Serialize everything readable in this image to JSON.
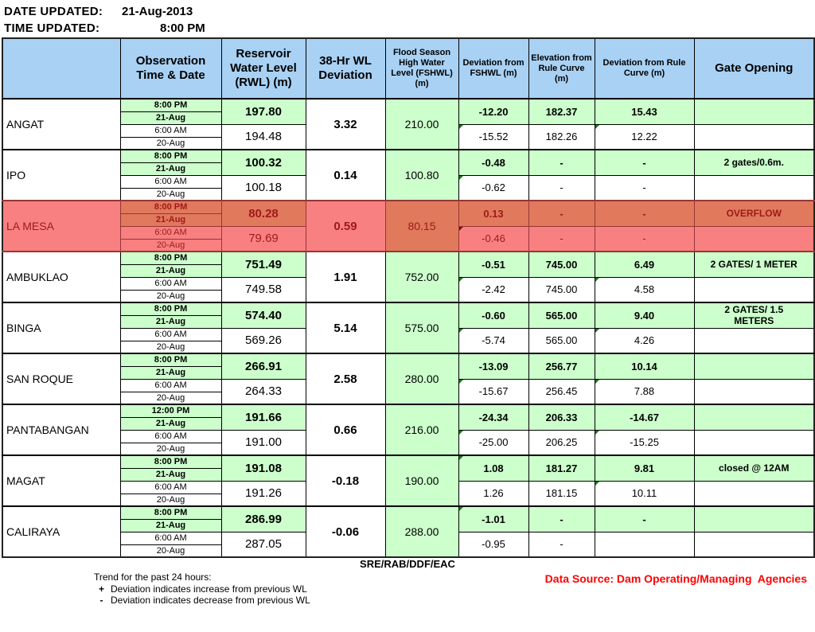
{
  "meta": {
    "date_label": "DATE UPDATED:",
    "date_value": "21-Aug-2013",
    "time_label": "TIME UPDATED:",
    "time_value": "8:00 PM"
  },
  "table": {
    "headers": {
      "dam": "",
      "observation": "Observation Time & Date",
      "rwl": "Reservoir Water Level (RWL) (m)",
      "dev38": "38-Hr WL Deviation",
      "fshwl": "Flood Season High Water Level (FSHWL) (m)",
      "dev_fshwl": "Deviation from FSHWL (m)",
      "elev_rule": "Elevation from Rule Curve (m)",
      "dev_rule": "Deviation from Rule Curve (m)",
      "gate": "Gate Opening"
    },
    "rows": [
      {
        "dam": "ANGAT",
        "highlight": false,
        "time": [
          "8:00 PM",
          "21-Aug",
          "6:00 AM",
          "20-Aug"
        ],
        "rwl": [
          "197.80",
          "194.48"
        ],
        "dev38": "3.32",
        "fshwl": "210.00",
        "dev_fshwl": [
          "-12.20",
          "-15.52"
        ],
        "elev_rule": [
          "182.37",
          "182.26"
        ],
        "dev_rule": [
          "15.43",
          "12.22"
        ],
        "gate": [
          "",
          ""
        ],
        "markers": {
          "devf_top": false,
          "devf_bot": true,
          "devr_bot": true
        }
      },
      {
        "dam": "IPO",
        "highlight": false,
        "time": [
          "8:00 PM",
          "21-Aug",
          "6:00 AM",
          "20-Aug"
        ],
        "rwl": [
          "100.32",
          "100.18"
        ],
        "dev38": "0.14",
        "fshwl": "100.80",
        "dev_fshwl": [
          "-0.48",
          "-0.62"
        ],
        "elev_rule": [
          "-",
          "-"
        ],
        "dev_rule": [
          "-",
          "-"
        ],
        "gate": [
          "2 gates/0.6m.",
          ""
        ],
        "markers": {
          "devf_top": false,
          "devf_bot": true,
          "devr_bot": false
        }
      },
      {
        "dam": "LA MESA",
        "highlight": true,
        "time": [
          "8:00 PM",
          "21-Aug",
          "6:00 AM",
          "20-Aug"
        ],
        "rwl": [
          "80.28",
          "79.69"
        ],
        "dev38": "0.59",
        "fshwl": "80.15",
        "dev_fshwl": [
          "0.13",
          "-0.46"
        ],
        "elev_rule": [
          "-",
          "-"
        ],
        "dev_rule": [
          "-",
          "-"
        ],
        "gate": [
          "OVERFLOW",
          ""
        ],
        "markers": {
          "devf_top": false,
          "devf_bot": true,
          "devr_bot": false
        }
      },
      {
        "dam": "AMBUKLAO",
        "highlight": false,
        "time": [
          "8:00 PM",
          "21-Aug",
          "6:00 AM",
          "20-Aug"
        ],
        "rwl": [
          "751.49",
          "749.58"
        ],
        "dev38": "1.91",
        "fshwl": "752.00",
        "dev_fshwl": [
          "-0.51",
          "-2.42"
        ],
        "elev_rule": [
          "745.00",
          "745.00"
        ],
        "dev_rule": [
          "6.49",
          "4.58"
        ],
        "gate": [
          "2 GATES/ 1 METER",
          ""
        ],
        "markers": {
          "devf_top": false,
          "devf_bot": true,
          "devr_bot": true
        }
      },
      {
        "dam": "BINGA",
        "highlight": false,
        "time": [
          "8:00 PM",
          "21-Aug",
          "6:00 AM",
          "20-Aug"
        ],
        "rwl": [
          "574.40",
          "569.26"
        ],
        "dev38": "5.14",
        "fshwl": "575.00",
        "dev_fshwl": [
          "-0.60",
          "-5.74"
        ],
        "elev_rule": [
          "565.00",
          "565.00"
        ],
        "dev_rule": [
          "9.40",
          "4.26"
        ],
        "gate": [
          "2 GATES/ 1.5\nMETERS",
          ""
        ],
        "markers": {
          "devf_top": false,
          "devf_bot": true,
          "devr_bot": true
        }
      },
      {
        "dam": "SAN ROQUE",
        "highlight": false,
        "time": [
          "8:00 PM",
          "21-Aug",
          "6:00 AM",
          "20-Aug"
        ],
        "rwl": [
          "266.91",
          "264.33"
        ],
        "dev38": "2.58",
        "fshwl": "280.00",
        "dev_fshwl": [
          "-13.09",
          "-15.67"
        ],
        "elev_rule": [
          "256.77",
          "256.45"
        ],
        "dev_rule": [
          "10.14",
          "7.88"
        ],
        "gate": [
          "",
          ""
        ],
        "markers": {
          "devf_top": false,
          "devf_bot": true,
          "devr_bot": true
        }
      },
      {
        "dam": "PANTABANGAN",
        "highlight": false,
        "time": [
          "12:00 PM",
          "21-Aug",
          "6:00 AM",
          "20-Aug"
        ],
        "rwl": [
          "191.66",
          "191.00"
        ],
        "dev38": "0.66",
        "fshwl": "216.00",
        "dev_fshwl": [
          "-24.34",
          "-25.00"
        ],
        "elev_rule": [
          "206.33",
          "206.25"
        ],
        "dev_rule": [
          "-14.67",
          "-15.25"
        ],
        "gate": [
          "",
          ""
        ],
        "markers": {
          "devf_top": false,
          "devf_bot": true,
          "devr_bot": true
        }
      },
      {
        "dam": "MAGAT",
        "highlight": false,
        "time": [
          "8:00 PM",
          "21-Aug",
          "6:00 AM",
          "20-Aug"
        ],
        "rwl": [
          "191.08",
          "191.26"
        ],
        "dev38": "-0.18",
        "fshwl": "190.00",
        "dev_fshwl": [
          "1.08",
          "1.26"
        ],
        "elev_rule": [
          "181.27",
          "181.15"
        ],
        "dev_rule": [
          "9.81",
          "10.11"
        ],
        "gate": [
          "closed @ 12AM",
          ""
        ],
        "markers": {
          "devf_top": true,
          "devf_bot": false,
          "devr_bot": true
        }
      },
      {
        "dam": "CALIRAYA",
        "highlight": false,
        "time": [
          "8:00 PM",
          "21-Aug",
          "6:00 AM",
          "20-Aug"
        ],
        "rwl": [
          "286.99",
          "287.05"
        ],
        "dev38": "-0.06",
        "fshwl": "288.00",
        "dev_fshwl": [
          "-1.01",
          "-0.95"
        ],
        "elev_rule": [
          "-",
          "-"
        ],
        "dev_rule": [
          "-",
          ""
        ],
        "gate": [
          "",
          ""
        ],
        "markers": {
          "devf_top": true,
          "devf_bot": false,
          "devr_bot": false
        }
      }
    ]
  },
  "footer": {
    "initials": "SRE/RAB/DDF/EAC",
    "trend_title": "Trend for the past 24 hours:",
    "trend_plus_symbol": "+",
    "trend_plus": "Deviation indicates increase from previous WL",
    "trend_minus_symbol": "-",
    "trend_minus": "Deviation indicates decrease from previous WL",
    "data_source": "Data Source: Dam Operating/Managing  Agencies"
  },
  "colors": {
    "header_bg": "#A8D1F4",
    "highlight_green": "#CCFFCC",
    "alert_row_light": "#F88080",
    "alert_row_dark": "#E1795D",
    "alert_text": "#9E1A1A",
    "alert_border": "#953735",
    "data_source_text": "#FF0000"
  }
}
